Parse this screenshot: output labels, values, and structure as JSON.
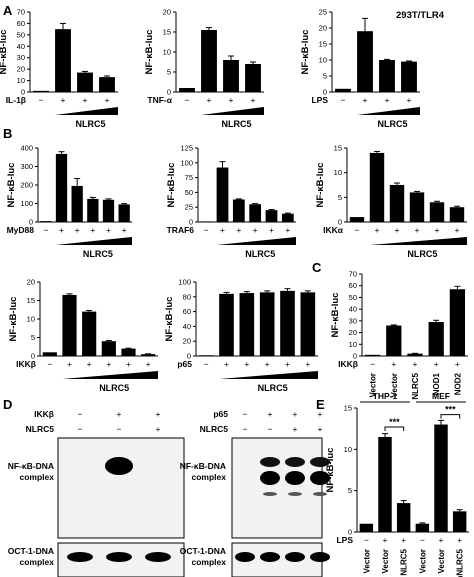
{
  "panel_labels": [
    "A",
    "B",
    "C",
    "D",
    "E"
  ],
  "cell_line": "293T/TLR4",
  "chart_data": [
    {
      "id": "A1",
      "type": "bar",
      "ylabel": "NF-κB-luc",
      "ylim": [
        0,
        70
      ],
      "yticks": [
        0,
        10,
        20,
        30,
        40,
        50,
        60,
        70
      ],
      "values": [
        1,
        55,
        17,
        13
      ],
      "errors": [
        0,
        5,
        1,
        1
      ],
      "row_label": "IL-1β",
      "conditions": [
        "−",
        "+",
        "+",
        "+"
      ],
      "ramp_label": "NLRC5"
    },
    {
      "id": "A2",
      "type": "bar",
      "ylabel": "NF-κB-luc",
      "ylim": [
        0,
        20
      ],
      "yticks": [
        0,
        5,
        10,
        15,
        20
      ],
      "values": [
        1,
        15.5,
        8,
        7
      ],
      "errors": [
        0,
        0.6,
        1,
        0.5
      ],
      "row_label": "TNF-α",
      "conditions": [
        "−",
        "+",
        "+",
        "+"
      ],
      "ramp_label": "NLRC5"
    },
    {
      "id": "A3",
      "type": "bar",
      "ylabel": "NF-κB-luc",
      "ylim": [
        0,
        25
      ],
      "yticks": [
        0,
        5,
        10,
        15,
        20,
        25
      ],
      "values": [
        1,
        19,
        10,
        9.5
      ],
      "errors": [
        0,
        4,
        0.2,
        0.2
      ],
      "row_label": "LPS",
      "conditions": [
        "−",
        "+",
        "+",
        "+"
      ],
      "ramp_label": "NLRC5"
    },
    {
      "id": "B1",
      "type": "bar",
      "ylabel": "NF-κB-luc",
      "ylim": [
        0,
        400
      ],
      "yticks": [
        0,
        100,
        200,
        300,
        400
      ],
      "values": [
        5,
        368,
        195,
        125,
        120,
        95
      ],
      "errors": [
        0,
        12,
        40,
        8,
        5,
        4
      ],
      "row_label": "MyD88",
      "conditions": [
        "−",
        "+",
        "+",
        "+",
        "+",
        "+"
      ],
      "ramp_label": "NLRC5"
    },
    {
      "id": "B2",
      "type": "bar",
      "ylabel": "NF-κB-luc",
      "ylim": [
        0,
        125
      ],
      "yticks": [
        0,
        25,
        50,
        75,
        100,
        125
      ],
      "values": [
        1,
        92,
        38,
        30,
        20,
        14
      ],
      "errors": [
        0,
        10,
        1,
        1,
        1,
        1
      ],
      "row_label": "TRAF6",
      "conditions": [
        "−",
        "+",
        "+",
        "+",
        "+",
        "+"
      ],
      "ramp_label": "NLRC5"
    },
    {
      "id": "B3",
      "type": "bar",
      "ylabel": "NF-κB-luc",
      "ylim": [
        0,
        15
      ],
      "yticks": [
        0,
        5,
        10,
        15
      ],
      "values": [
        1,
        14,
        7.5,
        6,
        4,
        3
      ],
      "errors": [
        0,
        0.3,
        0.4,
        0.2,
        0.2,
        0.2
      ],
      "row_label": "IKKα",
      "conditions": [
        "−",
        "+",
        "+",
        "+",
        "+",
        "+"
      ],
      "ramp_label": "NLRC5"
    },
    {
      "id": "B4",
      "type": "bar",
      "ylabel": "NF-κB-luc",
      "ylim": [
        0,
        20
      ],
      "yticks": [
        0,
        5,
        10,
        15,
        20
      ],
      "values": [
        1,
        16.5,
        12,
        4,
        2,
        0.5
      ],
      "errors": [
        0,
        0.3,
        0.3,
        0.2,
        0.1,
        0.1
      ],
      "row_label": "IKKβ",
      "conditions": [
        "−",
        "+",
        "+",
        "+",
        "+",
        "+"
      ],
      "ramp_label": "NLRC5"
    },
    {
      "id": "B5",
      "type": "bar",
      "ylabel": "NF-κB-luc",
      "ylim": [
        0,
        100
      ],
      "yticks": [
        0,
        20,
        40,
        60,
        80,
        100
      ],
      "values": [
        1,
        84,
        85,
        86,
        88,
        86
      ],
      "errors": [
        0,
        2,
        2,
        2,
        3,
        2
      ],
      "row_label": "p65",
      "conditions": [
        "−",
        "+",
        "+",
        "+",
        "+",
        "+"
      ],
      "ramp_label": "NLRC5"
    },
    {
      "id": "C",
      "type": "bar",
      "ylabel": "NF-κB-luc",
      "ylim": [
        0,
        70
      ],
      "yticks": [
        0,
        10,
        20,
        30,
        40,
        50,
        60,
        70
      ],
      "values": [
        1,
        26,
        2,
        29,
        57
      ],
      "errors": [
        0,
        0.5,
        0.3,
        1.5,
        2.5
      ],
      "row_label": "IKKβ",
      "conditions": [
        "−",
        "+",
        "+",
        "+",
        "+"
      ],
      "categories": [
        "Vector",
        "Vector",
        "NLRC5",
        "NOD1",
        "NOD2"
      ]
    },
    {
      "id": "E",
      "type": "bar",
      "ylabel": "NF-κB-luc",
      "ylim": [
        0,
        15
      ],
      "yticks": [
        0,
        5,
        10,
        15
      ],
      "values": [
        1,
        11.5,
        3.5,
        1,
        13,
        2.5
      ],
      "errors": [
        0,
        0.4,
        0.3,
        0.1,
        0.5,
        0.2
      ],
      "row_label": "LPS",
      "conditions": [
        "−",
        "+",
        "+",
        "−",
        "+",
        "+"
      ],
      "categories": [
        "Vector",
        "Vector",
        "NLRC5",
        "Vector",
        "Vector",
        "mNLRC5"
      ],
      "groups": [
        "THP-1",
        "MEF"
      ],
      "significance": [
        "***",
        "***"
      ]
    }
  ],
  "gels": [
    {
      "id": "D1",
      "row_labels": [
        "IKKβ",
        "NLRC5"
      ],
      "conditions": [
        [
          "−",
          "+",
          "+"
        ],
        [
          "−",
          "−",
          "+"
        ]
      ],
      "band_labels": [
        "NF-κB-DNA complex",
        "OCT-1-DNA complex"
      ]
    },
    {
      "id": "D2",
      "row_labels": [
        "p65",
        "NLRC5"
      ],
      "conditions": [
        [
          "−",
          "+",
          "+",
          "+"
        ],
        [
          "−",
          "−",
          "+",
          "+"
        ]
      ],
      "band_labels": [
        "NF-κB-DNA complex",
        "OCT-1-DNA complex"
      ]
    }
  ]
}
